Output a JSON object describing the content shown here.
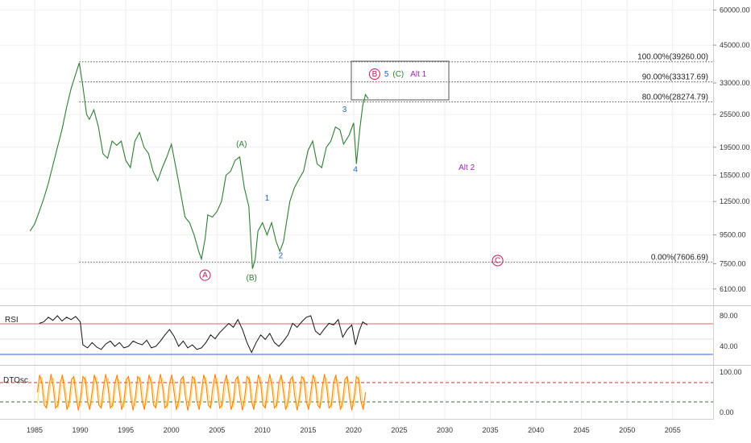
{
  "chart_data": {
    "type": "line",
    "price_scale": "log",
    "price_ticks": [
      "60000.00",
      "45000.00",
      "33000.00",
      "25500.00",
      "19500.00",
      "15500.00",
      "12500.00",
      "9500.00",
      "7500.00",
      "6100.00"
    ],
    "x_ticks": [
      "1985",
      "1990",
      "1995",
      "2000",
      "2005",
      "2010",
      "2015",
      "2020",
      "2025",
      "2030",
      "2035",
      "2040",
      "2045",
      "2050",
      "2055"
    ],
    "price_series": [
      [
        1984.5,
        9800
      ],
      [
        1985.0,
        10400
      ],
      [
        1985.5,
        11500
      ],
      [
        1986.0,
        12800
      ],
      [
        1986.5,
        14500
      ],
      [
        1987.0,
        16800
      ],
      [
        1987.5,
        19500
      ],
      [
        1988.0,
        22500
      ],
      [
        1988.5,
        27000
      ],
      [
        1989.0,
        31500
      ],
      [
        1989.5,
        35500
      ],
      [
        1989.9,
        38900
      ],
      [
        1990.3,
        32000
      ],
      [
        1990.7,
        25500
      ],
      [
        1991.0,
        24500
      ],
      [
        1991.5,
        26500
      ],
      [
        1992.0,
        23000
      ],
      [
        1992.5,
        18500
      ],
      [
        1993.0,
        17800
      ],
      [
        1993.5,
        20500
      ],
      [
        1994.0,
        19800
      ],
      [
        1994.5,
        20500
      ],
      [
        1995.0,
        17500
      ],
      [
        1995.5,
        16500
      ],
      [
        1996.0,
        20500
      ],
      [
        1996.5,
        22000
      ],
      [
        1997.0,
        19500
      ],
      [
        1997.5,
        18500
      ],
      [
        1998.0,
        16000
      ],
      [
        1998.5,
        14800
      ],
      [
        1999.0,
        16500
      ],
      [
        1999.5,
        18000
      ],
      [
        2000.0,
        20000
      ],
      [
        2000.5,
        16500
      ],
      [
        2001.0,
        13500
      ],
      [
        2001.5,
        11000
      ],
      [
        2002.0,
        10500
      ],
      [
        2002.5,
        9500
      ],
      [
        2003.0,
        8300
      ],
      [
        2003.3,
        7800
      ],
      [
        2003.7,
        9200
      ],
      [
        2004.0,
        11200
      ],
      [
        2004.5,
        11000
      ],
      [
        2005.0,
        11500
      ],
      [
        2005.5,
        12500
      ],
      [
        2006.0,
        15500
      ],
      [
        2006.5,
        16000
      ],
      [
        2007.0,
        17500
      ],
      [
        2007.5,
        18000
      ],
      [
        2008.0,
        14000
      ],
      [
        2008.5,
        12000
      ],
      [
        2008.9,
        7200
      ],
      [
        2009.2,
        7800
      ],
      [
        2009.5,
        9800
      ],
      [
        2010.0,
        10500
      ],
      [
        2010.5,
        9500
      ],
      [
        2011.0,
        10500
      ],
      [
        2011.5,
        9000
      ],
      [
        2011.9,
        8300
      ],
      [
        2012.3,
        9000
      ],
      [
        2013.0,
        12500
      ],
      [
        2013.5,
        14000
      ],
      [
        2014.0,
        15000
      ],
      [
        2014.5,
        16000
      ],
      [
        2015.0,
        19000
      ],
      [
        2015.5,
        20500
      ],
      [
        2016.0,
        17000
      ],
      [
        2016.5,
        16500
      ],
      [
        2017.0,
        19500
      ],
      [
        2017.5,
        20500
      ],
      [
        2018.0,
        23000
      ],
      [
        2018.5,
        22500
      ],
      [
        2018.9,
        20000
      ],
      [
        2019.5,
        21500
      ],
      [
        2020.0,
        23800
      ],
      [
        2020.3,
        17000
      ],
      [
        2020.7,
        23000
      ],
      [
        2021.0,
        27500
      ],
      [
        2021.3,
        30000
      ],
      [
        2021.6,
        29000
      ]
    ],
    "fib_levels": [
      {
        "label": "100.00%(39260.00)",
        "value": 39260
      },
      {
        "label": "90.00%(33317.69)",
        "value": 33317.69
      },
      {
        "label": "80.00%(28274.79)",
        "value": 28274.79
      },
      {
        "label": "0.00%(7606.69)",
        "value": 7606.69
      }
    ],
    "wave_labels": [
      {
        "text": "A",
        "x": 2003.7,
        "y": 6700,
        "color": "#c2185b",
        "circled": true
      },
      {
        "text": "(A)",
        "x": 2007.7,
        "y": 19600,
        "color": "#2e7d32",
        "circled": false
      },
      {
        "text": "(B)",
        "x": 2008.8,
        "y": 6550,
        "color": "#2e7d32",
        "circled": false
      },
      {
        "text": "1",
        "x": 2010.5,
        "y": 12600,
        "color": "#1e63c9",
        "circled": false
      },
      {
        "text": "2",
        "x": 2012.0,
        "y": 7850,
        "color": "#1e63c9",
        "circled": false
      },
      {
        "text": "3",
        "x": 2019.0,
        "y": 26000,
        "color": "#1e63c9",
        "circled": false
      },
      {
        "text": "4",
        "x": 2020.2,
        "y": 15900,
        "color": "#1e63c9",
        "circled": false
      },
      {
        "text": "B",
        "x": 2022.3,
        "y": 34800,
        "color": "#c2185b",
        "circled": true
      },
      {
        "text": "5",
        "x": 2023.6,
        "y": 34800,
        "color": "#1e63c9",
        "circled": false
      },
      {
        "text": "(C)",
        "x": 2024.9,
        "y": 34800,
        "color": "#2e7d32",
        "circled": false
      },
      {
        "text": "Alt 1",
        "x": 2027.1,
        "y": 34800,
        "color": "#9c27b0",
        "circled": false
      },
      {
        "text": "Alt 2",
        "x": 2032.4,
        "y": 16200,
        "color": "#9c27b0",
        "circled": false
      },
      {
        "text": "C",
        "x": 2035.8,
        "y": 7550,
        "color": "#c2185b",
        "circled": true
      }
    ],
    "rsi": {
      "title": "RSI",
      "ticks": [
        "80.00",
        "40.00"
      ],
      "upper_level": 70,
      "lower_level": 30,
      "values": [
        [
          1985.5,
          70
        ],
        [
          1986.0,
          72
        ],
        [
          1986.5,
          78
        ],
        [
          1987.0,
          74
        ],
        [
          1987.5,
          80
        ],
        [
          1988.0,
          73
        ],
        [
          1988.5,
          78
        ],
        [
          1989.0,
          75
        ],
        [
          1989.5,
          79
        ],
        [
          1990.0,
          72
        ],
        [
          1990.3,
          42
        ],
        [
          1990.8,
          38
        ],
        [
          1991.3,
          45
        ],
        [
          1991.8,
          39
        ],
        [
          1992.3,
          36
        ],
        [
          1992.8,
          43
        ],
        [
          1993.3,
          47
        ],
        [
          1993.8,
          40
        ],
        [
          1994.3,
          45
        ],
        [
          1994.8,
          38
        ],
        [
          1995.3,
          40
        ],
        [
          1995.8,
          47
        ],
        [
          1996.3,
          44
        ],
        [
          1996.8,
          42
        ],
        [
          1997.3,
          48
        ],
        [
          1997.8,
          38
        ],
        [
          1998.3,
          40
        ],
        [
          1998.8,
          47
        ],
        [
          1999.3,
          55
        ],
        [
          1999.8,
          62
        ],
        [
          2000.3,
          53
        ],
        [
          2000.8,
          40
        ],
        [
          2001.3,
          47
        ],
        [
          2001.8,
          38
        ],
        [
          2002.3,
          42
        ],
        [
          2002.8,
          36
        ],
        [
          2003.3,
          38
        ],
        [
          2003.8,
          45
        ],
        [
          2004.3,
          55
        ],
        [
          2004.8,
          50
        ],
        [
          2005.3,
          58
        ],
        [
          2005.8,
          64
        ],
        [
          2006.3,
          70
        ],
        [
          2006.8,
          65
        ],
        [
          2007.3,
          75
        ],
        [
          2007.8,
          62
        ],
        [
          2008.3,
          45
        ],
        [
          2008.8,
          32
        ],
        [
          2009.3,
          45
        ],
        [
          2009.8,
          55
        ],
        [
          2010.3,
          49
        ],
        [
          2010.8,
          57
        ],
        [
          2011.3,
          45
        ],
        [
          2011.8,
          40
        ],
        [
          2012.3,
          47
        ],
        [
          2012.8,
          55
        ],
        [
          2013.3,
          70
        ],
        [
          2013.8,
          65
        ],
        [
          2014.3,
          72
        ],
        [
          2014.8,
          78
        ],
        [
          2015.3,
          80
        ],
        [
          2015.8,
          60
        ],
        [
          2016.3,
          55
        ],
        [
          2016.8,
          63
        ],
        [
          2017.3,
          70
        ],
        [
          2017.8,
          68
        ],
        [
          2018.3,
          75
        ],
        [
          2018.8,
          52
        ],
        [
          2019.3,
          62
        ],
        [
          2019.8,
          68
        ],
        [
          2020.2,
          42
        ],
        [
          2020.6,
          60
        ],
        [
          2021.0,
          72
        ],
        [
          2021.5,
          68
        ]
      ]
    },
    "dtosc": {
      "title": "DTOsc",
      "ticks": [
        "100.00",
        "0.00"
      ],
      "upper_level": 75,
      "lower_level": 25,
      "start": 1985.3,
      "end": 2021.5,
      "step": 0.25,
      "period": 1.2,
      "fast_color": "#ff7f0e",
      "slow_color": "#ffd54f"
    }
  }
}
